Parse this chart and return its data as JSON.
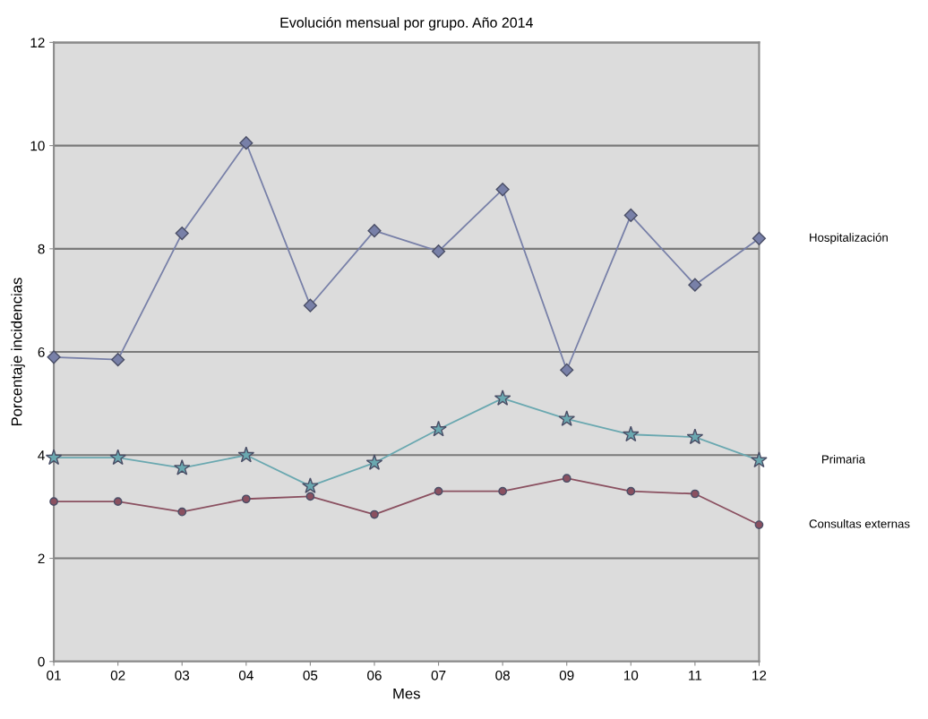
{
  "chart_data": {
    "type": "line",
    "title": "Evolución mensual por grupo. Año 2014",
    "xlabel": "Mes",
    "ylabel": "Porcentaje incidencias",
    "categories": [
      "01",
      "02",
      "03",
      "04",
      "05",
      "06",
      "07",
      "08",
      "09",
      "10",
      "11",
      "12"
    ],
    "series": [
      {
        "name": "Hospitalización",
        "color": "#7880a8",
        "marker": "diamond",
        "values": [
          5.9,
          5.85,
          8.3,
          10.05,
          6.9,
          8.35,
          7.95,
          9.15,
          5.65,
          8.65,
          7.3,
          8.2
        ]
      },
      {
        "name": "Primaria",
        "color": "#6aa8b0",
        "marker": "star",
        "values": [
          3.95,
          3.95,
          3.75,
          4.0,
          3.4,
          3.85,
          4.5,
          5.1,
          4.7,
          4.4,
          4.35,
          3.9
        ]
      },
      {
        "name": "Consultas externas",
        "color": "#8a5060",
        "marker": "circle",
        "values": [
          3.1,
          3.1,
          2.9,
          3.15,
          3.2,
          2.85,
          3.3,
          3.3,
          3.55,
          3.3,
          3.25,
          2.65
        ]
      }
    ],
    "ylim": [
      0,
      12
    ],
    "yticks": [
      0,
      2,
      4,
      6,
      8,
      10,
      12
    ],
    "grid": "y",
    "legend": false,
    "line_style": "solid"
  }
}
